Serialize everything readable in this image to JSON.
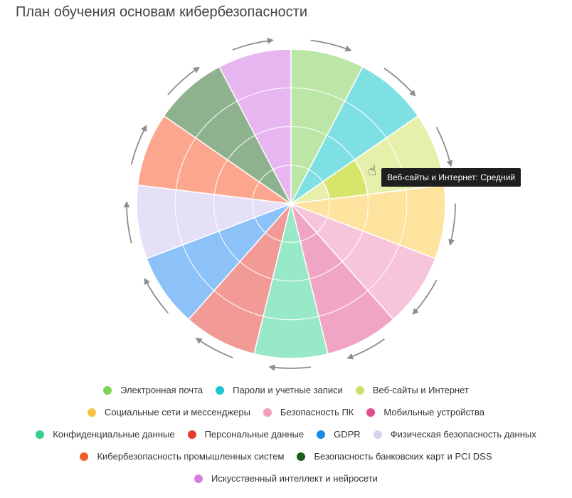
{
  "title": "План обучения основам кибербезопасности",
  "tooltip": "Веб-сайты и Интернет: Средний",
  "chart_data": {
    "type": "polar-area",
    "rings": 4,
    "legend_placement": "bottom",
    "series": [
      {
        "name": "Электронная почта",
        "color": "#7ed357",
        "fill": "#bce6a5",
        "level": 4
      },
      {
        "name": "Пароли и учетные записи",
        "color": "#1ec6cf",
        "fill": "#7fe0e3",
        "level": 4
      },
      {
        "name": "Веб-сайты и Интернет",
        "color": "#c9e06a",
        "fill": "#e6f0ab",
        "hover_fill": "#d6e66a",
        "level": 4,
        "highlight_level": 2
      },
      {
        "name": "Социальные сети и мессенджеры",
        "color": "#f6c344",
        "fill": "#fde39e",
        "level": 4
      },
      {
        "name": "Безопасность ПК",
        "color": "#f29cbd",
        "fill": "#f7c5da",
        "level": 4
      },
      {
        "name": "Мобильные устройства",
        "color": "#e24d8a",
        "fill": "#f1a5c4",
        "level": 4
      },
      {
        "name": "Конфиденциальные данные",
        "color": "#35d08f",
        "fill": "#98e9c7",
        "level": 4
      },
      {
        "name": "Персональные данные",
        "color": "#e8392f",
        "fill": "#f29a95",
        "level": 4
      },
      {
        "name": "GDPR",
        "color": "#1e88e5",
        "fill": "#8cc2f8",
        "level": 4
      },
      {
        "name": "Физическая безопасность данных",
        "color": "#d9d1f4",
        "fill": "#e5e0f7",
        "level": 4
      },
      {
        "name": "Кибербезопасность промышленных систем",
        "color": "#f05e2b",
        "fill": "#fca78d",
        "level": 4
      },
      {
        "name": "Безопасность банковских карт и PCI DSS",
        "color": "#1e5e1a",
        "fill": "#8eb28d",
        "level": 4
      },
      {
        "name": "Искусственный интеллект и нейросети",
        "color": "#d77ce0",
        "fill": "#e7b5f0",
        "level": 4
      }
    ]
  }
}
